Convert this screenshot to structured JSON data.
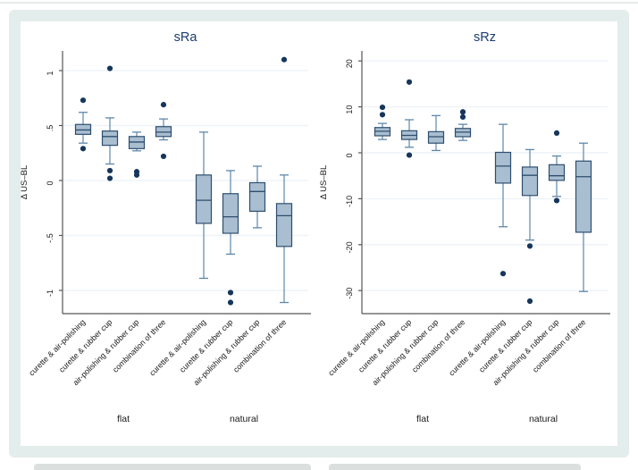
{
  "figure": {
    "type": "double-box-plot-figure",
    "colors": {
      "box_fill": "#a9bed0",
      "box_border": "#2e4e6e",
      "whisker": "#5d87ab",
      "median": "#2e4e6e",
      "outlier": "#16365c",
      "title": "#1c3c6e",
      "grid": "#eef3f8",
      "axis": "#565656",
      "text": "#1a1a1a",
      "frame": "#e3edeb"
    }
  },
  "chart_data": [
    {
      "type": "box",
      "title": "sRa",
      "ylabel": "Δ US–BL",
      "ylim": [
        -1.2,
        1.2
      ],
      "grid": true,
      "legend": "none",
      "yticks": [
        {
          "value": 1,
          "label": "1"
        },
        {
          "value": 0.5,
          "label": ".5"
        },
        {
          "value": 0,
          "label": "0"
        },
        {
          "value": -0.5,
          "label": "-.5"
        },
        {
          "value": -1,
          "label": "-1"
        }
      ],
      "groups": [
        {
          "name": "flat",
          "boxes": [
            {
              "category": "curette & air-polishing",
              "whisker_low": 0.34,
              "q1": 0.42,
              "median": 0.46,
              "q3": 0.51,
              "whisker_high": 0.62,
              "outliers": [
                0.73,
                0.29
              ]
            },
            {
              "category": "curette & rubber cup",
              "whisker_low": 0.15,
              "q1": 0.32,
              "median": 0.4,
              "q3": 0.45,
              "whisker_high": 0.57,
              "outliers": [
                1.02,
                0.09,
                0.02
              ]
            },
            {
              "category": "air-polishing & rubber cup",
              "whisker_low": 0.27,
              "q1": 0.29,
              "median": 0.35,
              "q3": 0.4,
              "whisker_high": 0.44,
              "outliers": [
                0.08,
                0.05
              ]
            },
            {
              "category": "combination of three",
              "whisker_low": 0.37,
              "q1": 0.4,
              "median": 0.44,
              "q3": 0.49,
              "whisker_high": 0.56,
              "outliers": [
                0.69,
                0.22
              ]
            }
          ]
        },
        {
          "name": "natural",
          "boxes": [
            {
              "category": "curette & air-polishing",
              "whisker_low": -0.89,
              "q1": -0.39,
              "median": -0.18,
              "q3": 0.05,
              "whisker_high": 0.44,
              "outliers": []
            },
            {
              "category": "curette & rubber cup",
              "whisker_low": -0.67,
              "q1": -0.48,
              "median": -0.33,
              "q3": -0.12,
              "whisker_high": 0.09,
              "outliers": [
                -1.02,
                -1.11
              ]
            },
            {
              "category": "air-polishing & rubber cup",
              "whisker_low": -0.43,
              "q1": -0.28,
              "median": -0.1,
              "q3": -0.02,
              "whisker_high": 0.13,
              "outliers": []
            },
            {
              "category": "combination of three",
              "whisker_low": -1.11,
              "q1": -0.6,
              "median": -0.32,
              "q3": -0.21,
              "whisker_high": 0.05,
              "outliers": [
                1.1
              ]
            }
          ]
        }
      ]
    },
    {
      "type": "box",
      "title": "sRz",
      "ylabel": "Δ US–BL",
      "ylim": [
        -34,
        22
      ],
      "grid": true,
      "legend": "none",
      "yticks": [
        {
          "value": 20,
          "label": "20"
        },
        {
          "value": 10,
          "label": "10"
        },
        {
          "value": 0,
          "label": "0"
        },
        {
          "value": -10,
          "label": "-10"
        },
        {
          "value": -20,
          "label": "-20"
        },
        {
          "value": -30,
          "label": "-30"
        }
      ],
      "groups": [
        {
          "name": "flat",
          "boxes": [
            {
              "category": "curette & air-polishing",
              "whisker_low": 2.9,
              "q1": 3.7,
              "median": 4.7,
              "q3": 5.5,
              "whisker_high": 6.4,
              "outliers": [
                9.9,
                8.3
              ]
            },
            {
              "category": "curette & rubber cup",
              "whisker_low": 1.2,
              "q1": 2.9,
              "median": 3.8,
              "q3": 4.8,
              "whisker_high": 7.2,
              "outliers": [
                15.4,
                -0.5
              ]
            },
            {
              "category": "air-polishing & rubber cup",
              "whisker_low": 0.5,
              "q1": 2.1,
              "median": 3.5,
              "q3": 4.6,
              "whisker_high": 8.1,
              "outliers": []
            },
            {
              "category": "combination of three",
              "whisker_low": 2.7,
              "q1": 3.5,
              "median": 4.5,
              "q3": 5.3,
              "whisker_high": 6.2,
              "outliers": [
                8.9,
                7.8
              ]
            }
          ]
        },
        {
          "name": "natural",
          "boxes": [
            {
              "category": "curette & air-polishing",
              "whisker_low": -16.1,
              "q1": -6.6,
              "median": -2.9,
              "q3": 0.1,
              "whisker_high": 6.2,
              "outliers": [
                -26.3
              ]
            },
            {
              "category": "curette & rubber cup",
              "whisker_low": -19.0,
              "q1": -9.3,
              "median": -4.9,
              "q3": -3.1,
              "whisker_high": 0.7,
              "outliers": [
                -20.3,
                -32.3
              ]
            },
            {
              "category": "air-polishing & rubber cup",
              "whisker_low": -9.5,
              "q1": -6.0,
              "median": -5.0,
              "q3": -2.6,
              "whisker_high": -0.7,
              "outliers": [
                4.3,
                -10.4
              ]
            },
            {
              "category": "combination of three",
              "whisker_low": -30.2,
              "q1": -17.3,
              "median": -5.2,
              "q3": -1.8,
              "whisker_high": 2.1,
              "outliers": []
            }
          ]
        }
      ]
    }
  ]
}
